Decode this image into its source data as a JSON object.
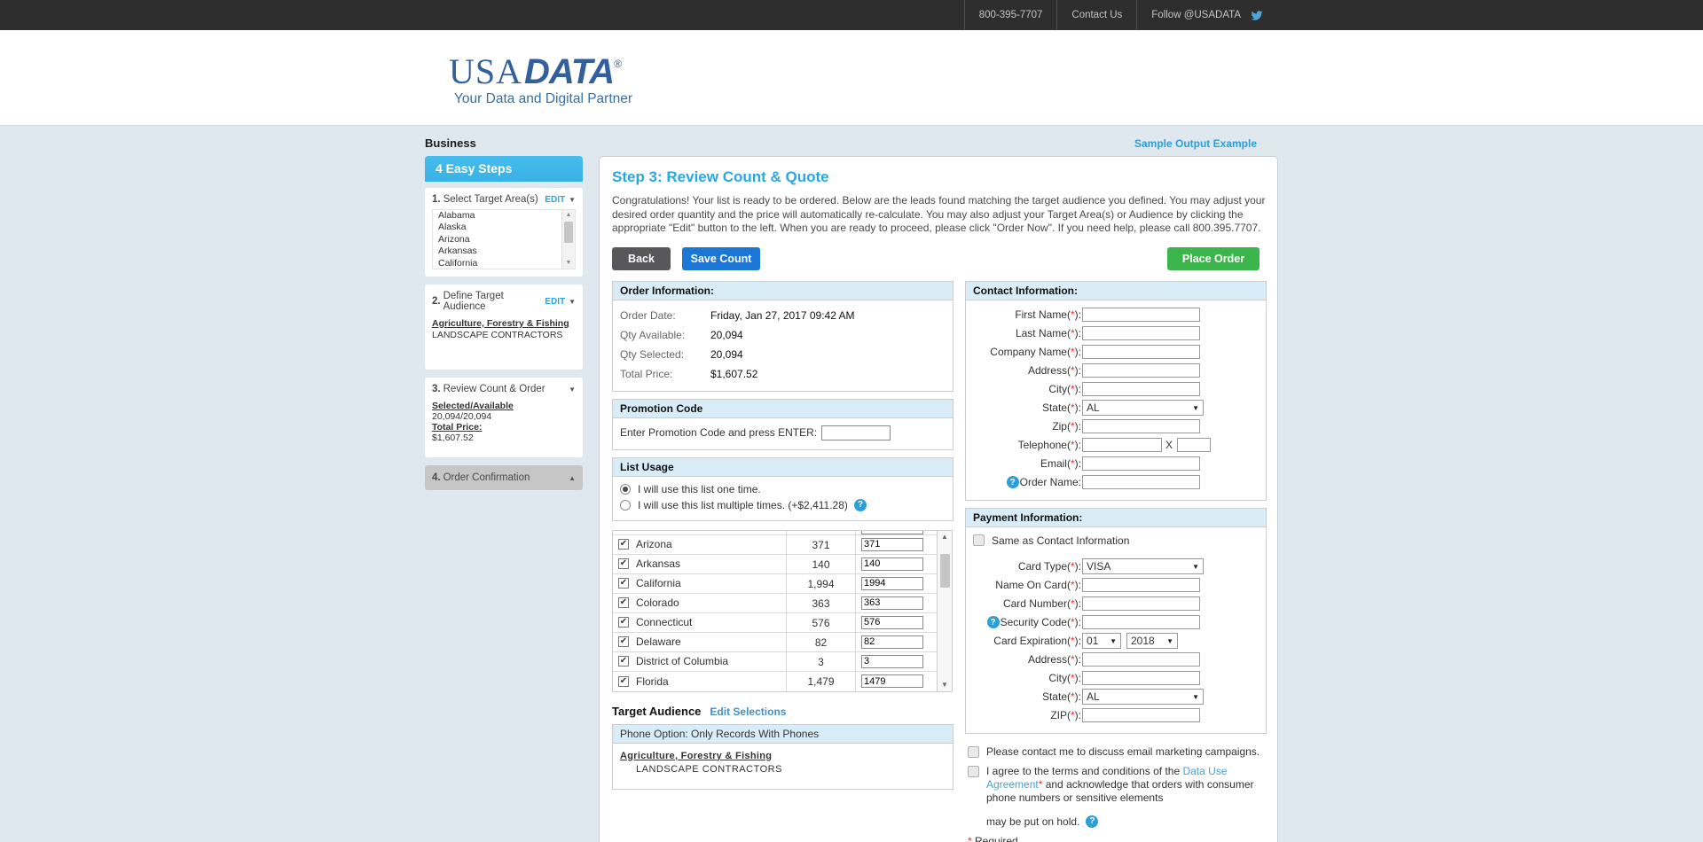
{
  "topbar": {
    "phone": "800-395-7707",
    "contact_us": "Contact Us",
    "follow": "Follow @USADATA"
  },
  "header": {
    "logo_usa": "USA",
    "logo_data": "DATA",
    "logo_reg": "®",
    "tagline": "Your Data and Digital Partner"
  },
  "page": {
    "category": "Business",
    "sample_link": "Sample Output Example"
  },
  "sidebar": {
    "title": "4 Easy Steps",
    "step1": {
      "num": "1.",
      "label": "Select Target Area(s)",
      "edit": "EDIT",
      "items": [
        "Alabama",
        "Alaska",
        "Arizona",
        "Arkansas",
        "California"
      ]
    },
    "step2": {
      "num": "2.",
      "label": "Define Target Audience",
      "edit": "EDIT",
      "category": "Agriculture, Forestry & Fishing",
      "subcategory": "LANDSCAPE CONTRACTORS"
    },
    "step3": {
      "num": "3.",
      "label": "Review Count & Order",
      "sa_label": "Selected/Available",
      "sa_value": "20,094/20,094",
      "tp_label": "Total Price:",
      "tp_value": "$1,607.52"
    },
    "step4": {
      "num": "4.",
      "label": "Order Confirmation"
    }
  },
  "main": {
    "title": "Step 3: Review Count & Quote",
    "intro": "Congratulations! Your list is ready to be ordered. Below are the leads found matching the target audience you defined. You may adjust your desired order quantity and the price will automatically re-calculate. You may also adjust your Target Area(s) or Audience by clicking the appropriate \"Edit\" button to the left. When you are ready to proceed, please click \"Order Now\". If you need help, please call 800.395.7707.",
    "back": "Back",
    "save_count": "Save Count",
    "place_order": "Place Order",
    "order_info": {
      "title": "Order Information:",
      "rows": [
        {
          "label": "Order Date:",
          "value": "Friday, Jan 27, 2017 09:42 AM"
        },
        {
          "label": "Qty Available:",
          "value": "20,094"
        },
        {
          "label": "Qty Selected:",
          "value": "20,094"
        },
        {
          "label": "Total Price:",
          "value": "$1,607.52"
        }
      ]
    },
    "promo": {
      "title": "Promotion Code",
      "label": "Enter Promotion Code and press ENTER:",
      "value": ""
    },
    "list_usage": {
      "title": "List Usage",
      "options": [
        {
          "label": "I will use this list one time.",
          "selected": true,
          "help": false
        },
        {
          "label": "I will use this list multiple times. (+$2,411.28)",
          "selected": false,
          "help": true
        }
      ]
    },
    "state_table": {
      "rows": [
        {
          "checked": true,
          "name": "Arizona",
          "count": "371",
          "qty": "371"
        },
        {
          "checked": true,
          "name": "Arkansas",
          "count": "140",
          "qty": "140"
        },
        {
          "checked": true,
          "name": "California",
          "count": "1,994",
          "qty": "1994"
        },
        {
          "checked": true,
          "name": "Colorado",
          "count": "363",
          "qty": "363"
        },
        {
          "checked": true,
          "name": "Connecticut",
          "count": "576",
          "qty": "576"
        },
        {
          "checked": true,
          "name": "Delaware",
          "count": "82",
          "qty": "82"
        },
        {
          "checked": true,
          "name": "District of Columbia",
          "count": "3",
          "qty": "3"
        },
        {
          "checked": true,
          "name": "Florida",
          "count": "1,479",
          "qty": "1479"
        }
      ]
    },
    "target_audience": {
      "title": "Target Audience",
      "edit_link": "Edit Selections",
      "phone_option": "Phone Option: Only Records With Phones",
      "category": "Agriculture, Forestry & Fishing",
      "subcategory": "LANDSCAPE CONTRACTORS"
    }
  },
  "contact": {
    "title": "Contact Information:",
    "fields": [
      {
        "pre": "First Name(",
        "star": "*",
        "post": "):",
        "type": "input"
      },
      {
        "pre": "Last Name(",
        "star": "*",
        "post": "):",
        "type": "input"
      },
      {
        "pre": "Company Name(",
        "star": "*",
        "post": "):",
        "type": "input"
      },
      {
        "pre": "Address(",
        "star": "*",
        "post": "):",
        "type": "input"
      },
      {
        "pre": "City(",
        "star": "*",
        "post": "):",
        "type": "input"
      },
      {
        "pre": "State(",
        "star": "*",
        "post": "):",
        "type": "select",
        "value": "AL"
      },
      {
        "pre": "Zip(",
        "star": "*",
        "post": "):",
        "type": "input"
      },
      {
        "pre": "Telephone(",
        "star": "*",
        "post": "):",
        "type": "phone",
        "ext_sep": "X"
      },
      {
        "pre": "Email(",
        "star": "*",
        "post": "):",
        "type": "input"
      },
      {
        "pre": "Order Name:",
        "star": "",
        "post": "",
        "type": "input",
        "help": true
      }
    ]
  },
  "payment": {
    "title": "Payment Information:",
    "same_as": "Same as Contact Information",
    "fields": [
      {
        "pre": "Card Type(",
        "star": "*",
        "post": "):",
        "type": "select",
        "value": "VISA"
      },
      {
        "pre": "Name On Card(",
        "star": "*",
        "post": "):",
        "type": "input"
      },
      {
        "pre": "Card Number(",
        "star": "*",
        "post": "):",
        "type": "input"
      },
      {
        "pre": "Security Code(",
        "star": "*",
        "post": "):",
        "type": "input",
        "help": true
      },
      {
        "pre": "Card Expiration(",
        "star": "*",
        "post": "):",
        "type": "expiry",
        "values": [
          "01",
          "2018"
        ]
      },
      {
        "pre": "Address(",
        "star": "*",
        "post": "):",
        "type": "input"
      },
      {
        "pre": "City(",
        "star": "*",
        "post": "):",
        "type": "input"
      },
      {
        "pre": "State(",
        "star": "*",
        "post": "):",
        "type": "select",
        "value": "AL"
      },
      {
        "pre": "ZIP(",
        "star": "*",
        "post": "):",
        "type": "input"
      }
    ]
  },
  "agreements": {
    "contact_me": "Please contact me to discuss email marketing campaigns.",
    "agree_pre": "I agree to the terms and conditions of the ",
    "agree_link": "Data Use Agreement",
    "agree_star": "*",
    "agree_post": " and acknowledge that orders with consumer phone numbers or sensitive elements",
    "hold": "may be put on hold.",
    "required_star": "*",
    "required": "Required"
  },
  "colors": {
    "topbar_bg": "#2d2d2d",
    "page_bg": "#dfe8ef",
    "sidebar_blue": "#3cb6ea",
    "panel_title_blue": "#29a8df",
    "button_blue": "#1c76d6",
    "button_green": "#3bb54c",
    "button_gray": "#58585a",
    "section_header_bg": "#d9edf8",
    "logo_navy": "#33609c",
    "link_blue": "#2f9dd8",
    "twitter_blue": "#4ba5da",
    "required_red": "#e8302a",
    "help_blue": "#2c9fd9"
  }
}
